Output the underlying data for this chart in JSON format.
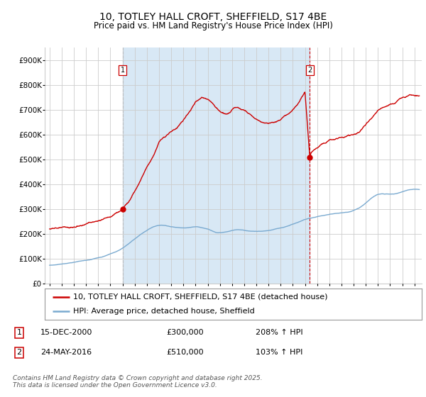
{
  "title": "10, TOTLEY HALL CROFT, SHEFFIELD, S17 4BE",
  "subtitle": "Price paid vs. HM Land Registry's House Price Index (HPI)",
  "ylabel_ticks": [
    "£0",
    "£100K",
    "£200K",
    "£300K",
    "£400K",
    "£500K",
    "£600K",
    "£700K",
    "£800K",
    "£900K"
  ],
  "ytick_values": [
    0,
    100000,
    200000,
    300000,
    400000,
    500000,
    600000,
    700000,
    800000,
    900000
  ],
  "ylim": [
    0,
    950000
  ],
  "xlim_start": 1994.6,
  "xlim_end": 2025.6,
  "sale1_x": 2001.0,
  "sale1_y": 300000,
  "sale2_x": 2016.4,
  "sale2_y": 510000,
  "red_line_color": "#CC0000",
  "blue_line_color": "#7AAAD0",
  "shade_color": "#D8E8F5",
  "grid_color": "#CCCCCC",
  "background_color": "#FFFFFF",
  "sale1_vline_color": "#888888",
  "sale2_vline_color": "#CC0000",
  "legend_red_label": "10, TOTLEY HALL CROFT, SHEFFIELD, S17 4BE (detached house)",
  "legend_blue_label": "HPI: Average price, detached house, Sheffield",
  "annotation1_date": "15-DEC-2000",
  "annotation1_price": "£300,000",
  "annotation1_hpi": "208% ↑ HPI",
  "annotation2_date": "24-MAY-2016",
  "annotation2_price": "£510,000",
  "annotation2_hpi": "103% ↑ HPI",
  "footer": "Contains HM Land Registry data © Crown copyright and database right 2025.\nThis data is licensed under the Open Government Licence v3.0.",
  "title_fontsize": 10,
  "subtitle_fontsize": 8.5,
  "tick_fontsize": 7.5,
  "legend_fontsize": 8,
  "annotation_fontsize": 8,
  "footer_fontsize": 6.5
}
